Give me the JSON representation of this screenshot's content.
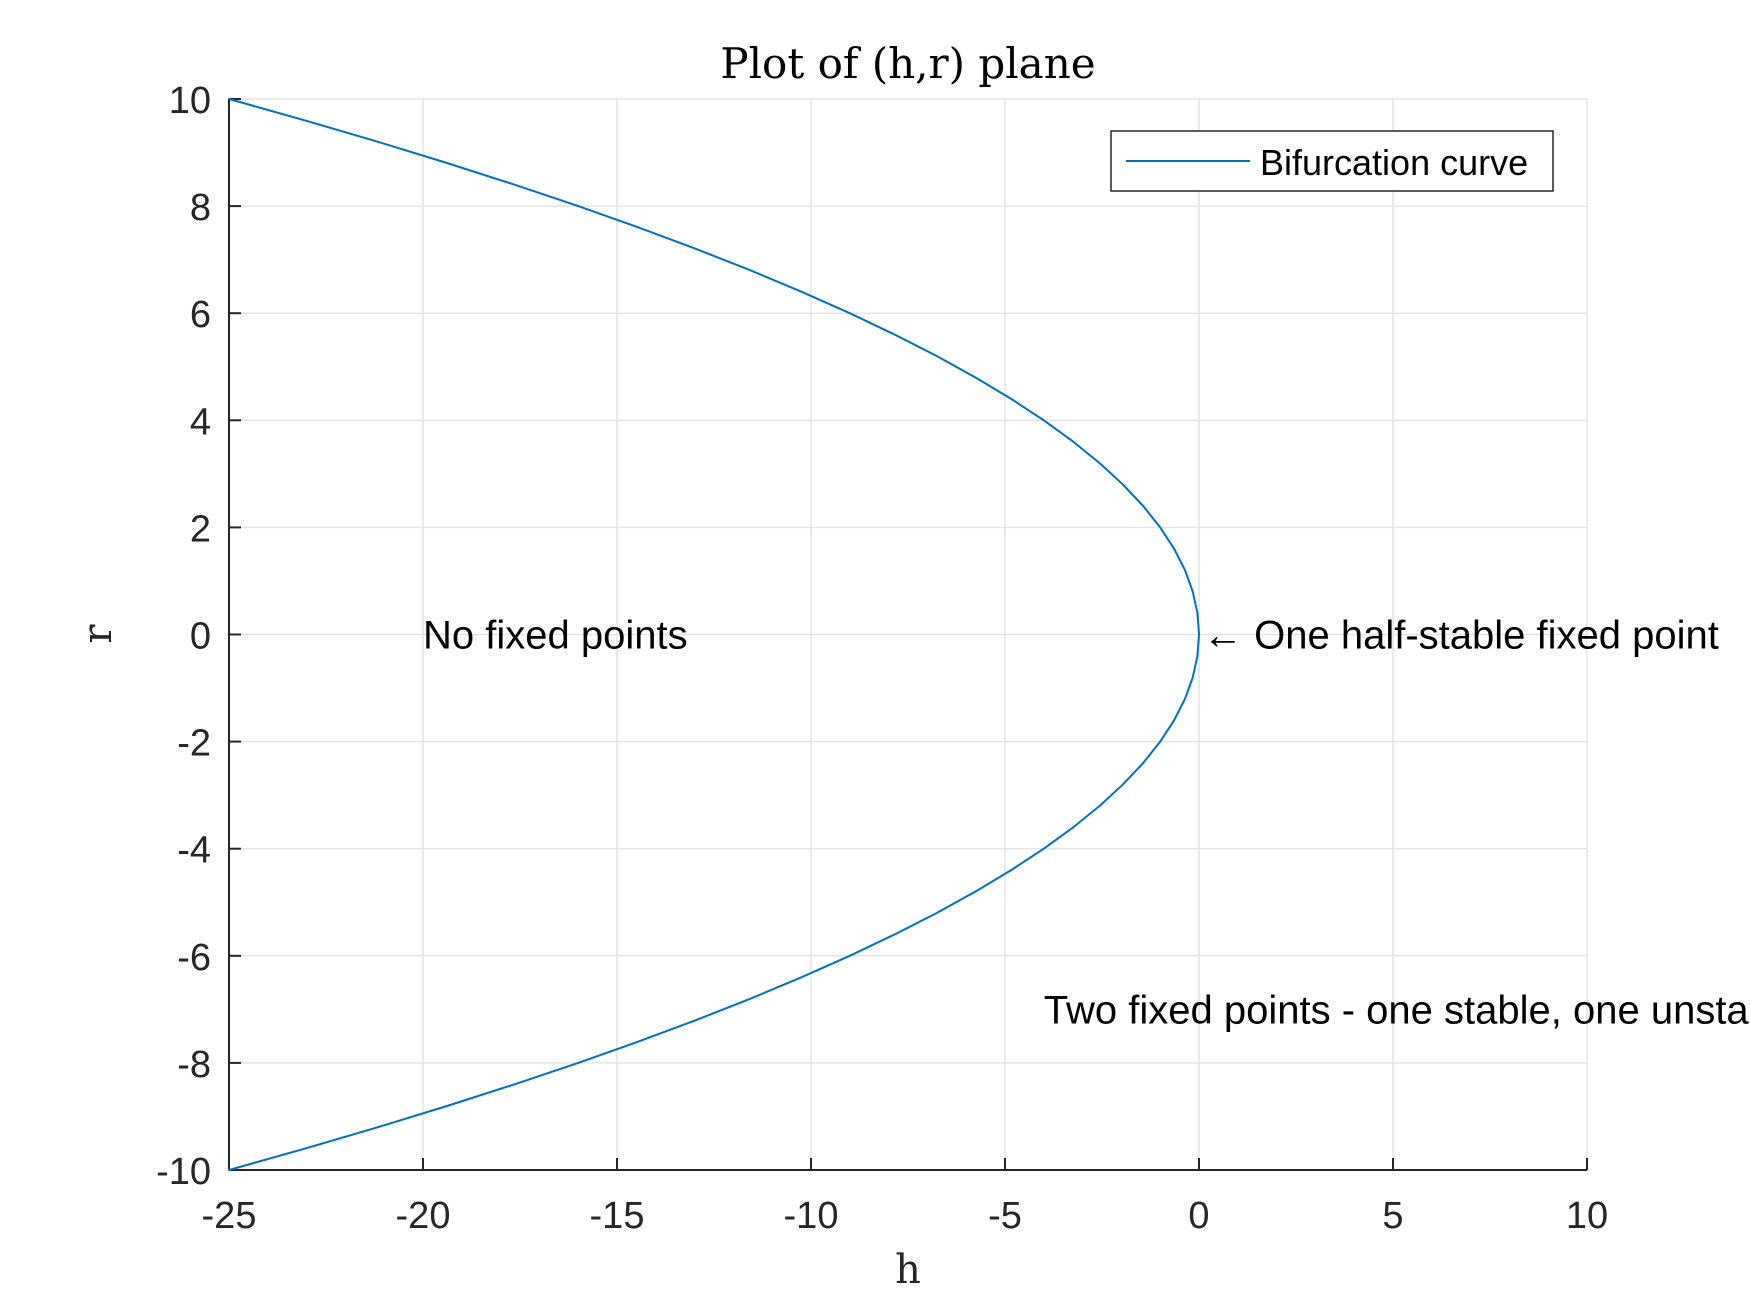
{
  "chart_data": {
    "type": "line",
    "title": "Plot of (h,r) plane",
    "xlabel": "h",
    "ylabel": "r",
    "xlim": [
      -25,
      10
    ],
    "ylim": [
      -10,
      10
    ],
    "xticks": [
      -25,
      -20,
      -15,
      -10,
      -5,
      0,
      5,
      10
    ],
    "yticks": [
      -10,
      -8,
      -6,
      -4,
      -2,
      0,
      2,
      4,
      6,
      8,
      10
    ],
    "xtick_labels": [
      "-25",
      "-20",
      "-15",
      "-10",
      "-5",
      "0",
      "5",
      "10"
    ],
    "ytick_labels": [
      "-10",
      "-8",
      "-6",
      "-4",
      "-2",
      "0",
      "2",
      "4",
      "6",
      "8",
      "10"
    ],
    "grid": true,
    "legend_position": "top-right",
    "series": [
      {
        "name": "Bifurcation curve",
        "color": "#0072bd",
        "x": [
          -25,
          -23.04,
          -21.16,
          -19.36,
          -17.64,
          -16,
          -14.44,
          -12.96,
          -11.56,
          -10.24,
          -9,
          -7.84,
          -6.76,
          -5.76,
          -4.84,
          -4,
          -3.24,
          -2.56,
          -1.96,
          -1.44,
          -1,
          -0.64,
          -0.36,
          -0.16,
          -0.04,
          0,
          -0.04,
          -0.16,
          -0.36,
          -0.64,
          -1,
          -1.44,
          -1.96,
          -2.56,
          -3.24,
          -4,
          -4.84,
          -5.76,
          -6.76,
          -7.84,
          -9,
          -10.24,
          -11.56,
          -12.96,
          -14.44,
          -16,
          -17.64,
          -19.36,
          -21.16,
          -23.04,
          -25
        ],
        "y": [
          10,
          9.6,
          9.2,
          8.8,
          8.4,
          8,
          7.6,
          7.2,
          6.8,
          6.4,
          6,
          5.6,
          5.2,
          4.8,
          4.4,
          4,
          3.6,
          3.2,
          2.8,
          2.4,
          2,
          1.6,
          1.2,
          0.8,
          0.4,
          0,
          -0.4,
          -0.8,
          -1.2,
          -1.6,
          -2,
          -2.4,
          -2.8,
          -3.2,
          -3.6,
          -4,
          -4.4,
          -4.8,
          -5.2,
          -5.6,
          -6,
          -6.4,
          -6.8,
          -7.2,
          -7.6,
          -8,
          -8.4,
          -8.8,
          -9.2,
          -9.6,
          -10
        ]
      }
    ],
    "annotations": [
      {
        "text": "No fixed points",
        "x": -20,
        "y": 0
      },
      {
        "text": "← One half-stable fixed point",
        "x": 0,
        "y": 0
      },
      {
        "text": "Two fixed points - one stable, one unstable",
        "x": -4,
        "y": -7
      }
    ]
  }
}
